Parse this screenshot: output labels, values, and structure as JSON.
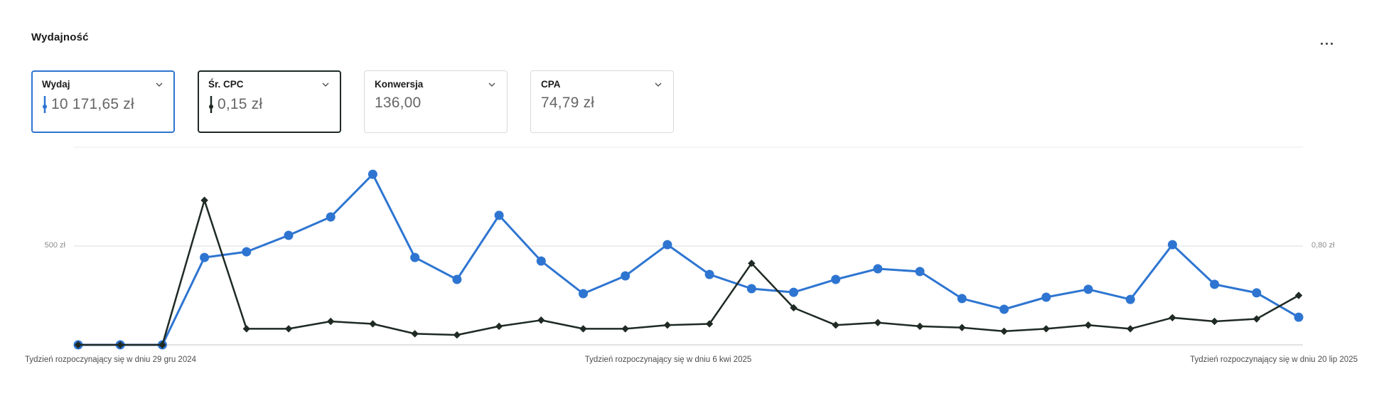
{
  "header": {
    "title": "Wydajność"
  },
  "metric_cards": [
    {
      "label": "Wydaj",
      "value": "10 171,65 zł",
      "selected": true,
      "accent": "#2e75d1",
      "show_indicator": true
    },
    {
      "label": "Śr. CPC",
      "value": "0,15 zł",
      "selected": true,
      "accent": "#1e2a23",
      "show_indicator": true
    },
    {
      "label": "Konwersja",
      "value": "136,00",
      "selected": false,
      "accent": "",
      "show_indicator": false
    },
    {
      "label": "CPA",
      "value": "74,79 zł",
      "selected": false,
      "accent": "",
      "show_indicator": false
    }
  ],
  "chart_data": {
    "type": "line",
    "title": "Wydajność",
    "x_tick_labels": [
      "Tydzień rozpoczynający się w dniu 29 gru 2024",
      "Tydzień rozpoczynający się w dniu 6 kwi 2025",
      "Tydzień rozpoczynający się w dniu 20 lip 2025"
    ],
    "x_unit": "week",
    "weeks": 30,
    "left_axis": {
      "label": "500 zł",
      "gridline_value": 500,
      "max": 1000,
      "unit": "zł"
    },
    "right_axis": {
      "label": "0,80 zł",
      "gridline_value": 0.8,
      "max": 1.6,
      "unit": "zł"
    },
    "grid": true,
    "legend_position": "none",
    "series": [
      {
        "name": "Wydaj",
        "axis": "left",
        "color": "#2e75d1",
        "marker": "circle",
        "values": [
          0,
          0,
          0,
          442,
          471,
          554,
          647,
          863,
          442,
          331,
          655,
          424,
          259,
          349,
          507,
          356,
          284,
          266,
          331,
          385,
          371,
          234,
          180,
          241,
          281,
          230,
          507,
          306,
          263,
          140
        ]
      },
      {
        "name": "Śr. CPC",
        "axis": "right",
        "color": "#1e2a23",
        "marker": "diamond",
        "values": [
          0,
          0,
          0,
          1.17,
          0.13,
          0.13,
          0.19,
          0.17,
          0.09,
          0.08,
          0.15,
          0.2,
          0.13,
          0.13,
          0.16,
          0.17,
          0.66,
          0.3,
          0.16,
          0.18,
          0.15,
          0.14,
          0.11,
          0.13,
          0.16,
          0.13,
          0.22,
          0.19,
          0.21,
          0.4
        ]
      }
    ]
  }
}
